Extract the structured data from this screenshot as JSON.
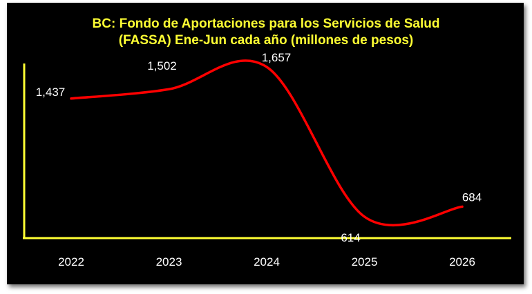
{
  "chart_data": {
    "type": "line",
    "title_line1": "BC: Fondo de Aportaciones para los Servicios de Salud",
    "title_line2": "(FASSA) Ene-Jun cada año (millones de pesos)",
    "categories": [
      "2022",
      "2023",
      "2024",
      "2025",
      "2026"
    ],
    "series": [
      {
        "values": [
          1437,
          1502,
          1657,
          614,
          684
        ],
        "labels": [
          "1,437",
          "1,502",
          "1,657",
          "614",
          "684"
        ]
      }
    ],
    "smooth": true,
    "grid": false,
    "colors": {
      "background": "#000000",
      "title": "#ffff33",
      "axis": "#ffff33",
      "line": "#ff0000",
      "text": "#ffffff"
    }
  }
}
